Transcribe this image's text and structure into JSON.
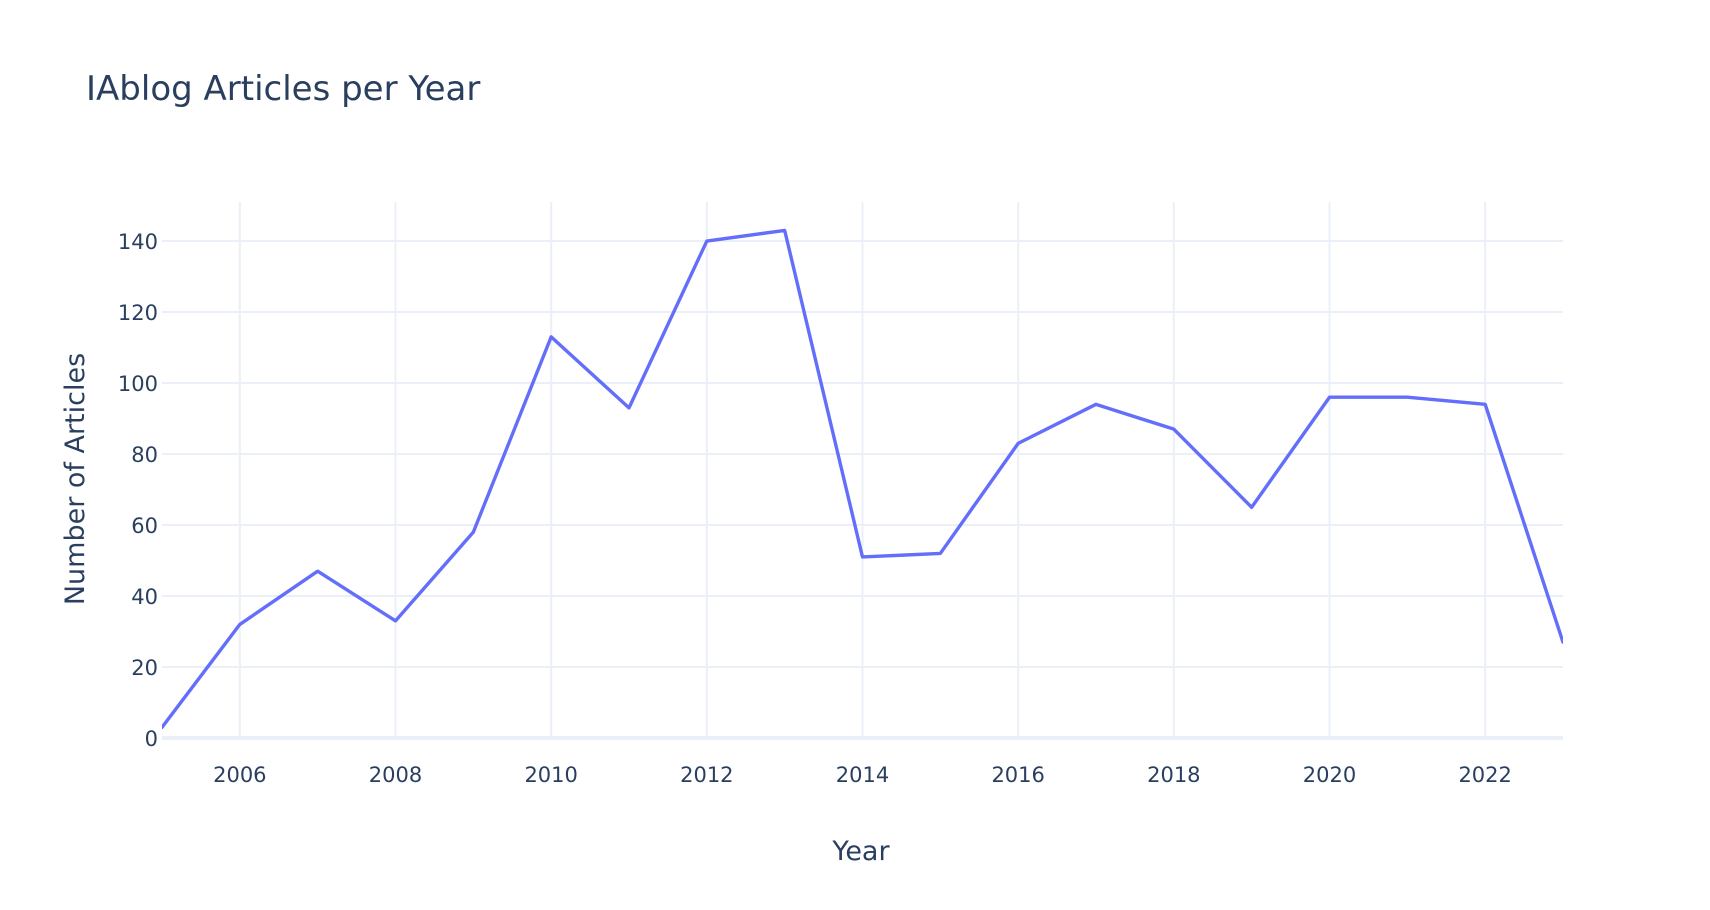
{
  "chart_data": {
    "type": "line",
    "title": "IAblog Articles per Year",
    "xlabel": "Year",
    "ylabel": "Number of Articles",
    "x": [
      2005,
      2006,
      2007,
      2008,
      2009,
      2010,
      2011,
      2012,
      2013,
      2014,
      2015,
      2016,
      2017,
      2018,
      2019,
      2020,
      2021,
      2022,
      2023
    ],
    "series": [
      {
        "values": [
          3,
          32,
          47,
          33,
          58,
          113,
          93,
          140,
          143,
          51,
          52,
          83,
          94,
          87,
          65,
          96,
          96,
          94,
          27
        ],
        "color": "#636efa"
      }
    ],
    "xlim": [
      2005,
      2023
    ],
    "ylim": [
      0,
      151
    ],
    "x_ticks": [
      "2006",
      "2008",
      "2010",
      "2012",
      "2014",
      "2016",
      "2018",
      "2020",
      "2022"
    ],
    "y_ticks": [
      "0",
      "20",
      "40",
      "60",
      "80",
      "100",
      "120",
      "140"
    ],
    "grid": true,
    "legend": "none"
  }
}
